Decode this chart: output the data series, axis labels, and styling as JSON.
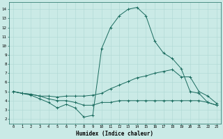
{
  "xlabel": "Humidex (Indice chaleur)",
  "xlim": [
    -0.5,
    23.5
  ],
  "ylim": [
    1.5,
    14.8
  ],
  "yticks": [
    2,
    3,
    4,
    5,
    6,
    7,
    8,
    9,
    10,
    11,
    12,
    13,
    14
  ],
  "xticks": [
    0,
    1,
    2,
    3,
    4,
    5,
    6,
    7,
    8,
    9,
    10,
    11,
    12,
    13,
    14,
    15,
    16,
    17,
    18,
    19,
    20,
    21,
    22,
    23
  ],
  "bg_color": "#caeae6",
  "line_color": "#1a6b5e",
  "grid_color": "#afd8d3",
  "curve1_y": [
    5.0,
    4.8,
    4.6,
    4.2,
    3.8,
    3.2,
    3.6,
    3.2,
    2.2,
    2.4,
    9.7,
    12.0,
    13.3,
    14.0,
    14.2,
    13.3,
    10.5,
    9.2,
    8.6,
    7.5,
    5.0,
    4.8,
    3.8,
    3.5
  ],
  "curve2_y": [
    5.0,
    4.8,
    4.7,
    4.5,
    4.5,
    4.4,
    4.5,
    4.5,
    4.5,
    4.6,
    4.8,
    5.3,
    5.7,
    6.1,
    6.5,
    6.7,
    7.0,
    7.2,
    7.4,
    6.6,
    6.6,
    5.0,
    4.5,
    3.7
  ],
  "curve3_y": [
    5.0,
    4.8,
    4.7,
    4.5,
    4.2,
    4.0,
    4.0,
    3.8,
    3.5,
    3.5,
    3.8,
    3.8,
    4.0,
    4.0,
    4.0,
    4.0,
    4.0,
    4.0,
    4.0,
    4.0,
    4.0,
    4.0,
    3.8,
    3.5
  ]
}
